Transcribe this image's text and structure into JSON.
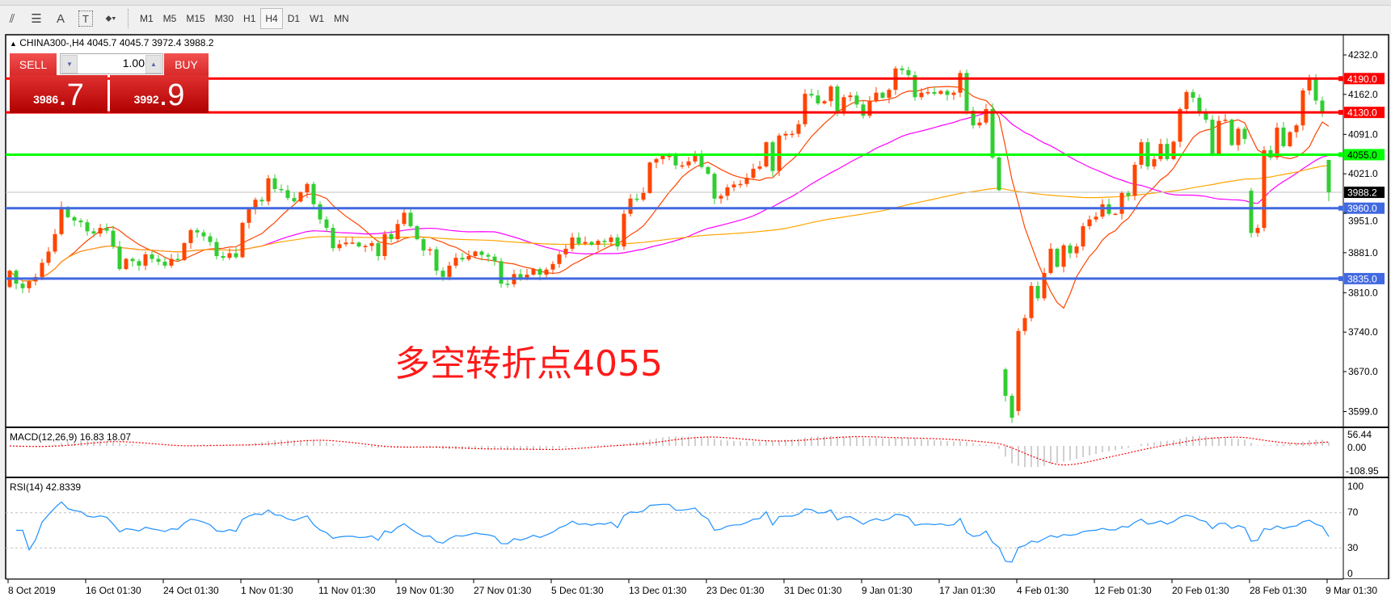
{
  "toolbar": {
    "tools": [
      {
        "icon": "fibonacci-expansion-icon",
        "glyph": "⫽"
      },
      {
        "icon": "fibonacci-fan-icon",
        "glyph": "☰"
      },
      {
        "icon": "text-icon",
        "glyph": "A"
      },
      {
        "icon": "text-label-icon",
        "glyph": "T"
      },
      {
        "icon": "arrows-dropdown-icon",
        "glyph": "⬥▾"
      }
    ],
    "timeframes": [
      "M1",
      "M5",
      "M15",
      "M30",
      "H1",
      "H4",
      "D1",
      "W1",
      "MN"
    ],
    "active_timeframe": "H4"
  },
  "header": {
    "arrow": "▲",
    "symbol": "CHINA300-,H4",
    "open": "4045.7",
    "high": "4045.7",
    "low": "3972.4",
    "close": "3988.2"
  },
  "trade_panel": {
    "sell_label": "SELL",
    "buy_label": "BUY",
    "lot": "1.00",
    "sell_price_main": "3986",
    "sell_price_big": ".7",
    "buy_price_main": "3992",
    "buy_price_big": ".9"
  },
  "annotation": "多空转折点4055",
  "price_axis": [
    "4232.0",
    "4162.0",
    "4091.0",
    "4021.0",
    "3951.0",
    "3881.0",
    "3810.0",
    "3740.0",
    "3670.0",
    "3599.0"
  ],
  "levels": [
    {
      "price": 4190.0,
      "label": "4190.0",
      "color": "#ff0000"
    },
    {
      "price": 4130.0,
      "label": "4130.0",
      "color": "#ff0000"
    },
    {
      "price": 4055.0,
      "label": "4055.0",
      "color": "#00ff00"
    },
    {
      "price": 3960.0,
      "label": "3960.0",
      "color": "#4169e1"
    },
    {
      "price": 3835.0,
      "label": "3835.0",
      "color": "#4169e1"
    }
  ],
  "current_price": {
    "price": 3988.2,
    "label": "3988.2"
  },
  "macd": {
    "label": "MACD(12,26,9) 16.83 18.07",
    "axis": [
      "56.44",
      "0.00",
      "-108.95"
    ]
  },
  "rsi": {
    "label": "RSI(14) 42.8339",
    "axis": [
      "100",
      "70",
      "30",
      "0"
    ]
  },
  "dates": [
    "8 Oct 2019",
    "16 Oct 01:30",
    "24 Oct 01:30",
    "1 Nov 01:30",
    "11 Nov 01:30",
    "19 Nov 01:30",
    "27 Nov 01:30",
    "5 Dec 01:30",
    "13 Dec 01:30",
    "23 Dec 01:30",
    "31 Dec 01:30",
    "9 Jan 01:30",
    "17 Jan 01:30",
    "4 Feb 01:30",
    "12 Feb 01:30",
    "20 Feb 01:30",
    "28 Feb 01:30",
    "9 Mar 01:30"
  ],
  "colors": {
    "bull": "#ff4500",
    "bear": "#32cd32",
    "ma_fast": "#ff4500",
    "ma_mid": "#ff00ff",
    "ma_slow": "#ffa500",
    "rsi": "#1e90ff",
    "macd_signal": "#ff0000",
    "macd_hist": "#c0c0c0"
  },
  "chart_data": {
    "type": "candlestick",
    "symbol": "CHINA300-",
    "timeframe": "H4",
    "ylim": [
      3599,
      4232
    ],
    "first_open": 3820,
    "gap_opens": {
      "154": 3674,
      "156": 3600,
      "192": 3991
    },
    "closes": [
      3849,
      3826,
      3818,
      3830,
      3838,
      3863,
      3883,
      3914,
      3962,
      3944,
      3938,
      3935,
      3919,
      3915,
      3925,
      3920,
      3892,
      3852,
      3870,
      3866,
      3858,
      3878,
      3870,
      3865,
      3858,
      3870,
      3868,
      3898,
      3921,
      3917,
      3910,
      3900,
      3875,
      3872,
      3880,
      3873,
      3934,
      3958,
      3975,
      3972,
      4013,
      3994,
      3992,
      3978,
      3972,
      3988,
      4003,
      3967,
      3940,
      3925,
      3889,
      3896,
      3899,
      3899,
      3892,
      3893,
      3898,
      3875,
      3914,
      3905,
      3932,
      3952,
      3928,
      3905,
      3885,
      3887,
      3849,
      3838,
      3858,
      3872,
      3869,
      3875,
      3883,
      3877,
      3874,
      3866,
      3826,
      3825,
      3843,
      3835,
      3842,
      3852,
      3842,
      3851,
      3861,
      3878,
      3888,
      3908,
      3897,
      3900,
      3895,
      3902,
      3900,
      3908,
      3892,
      3950,
      3977,
      3975,
      3987,
      4041,
      4047,
      4053,
      4053,
      4036,
      4036,
      4043,
      4053,
      4033,
      4021,
      3977,
      3982,
      3997,
      4002,
      4003,
      4014,
      4030,
      4034,
      4077,
      4026,
      4089,
      4092,
      4092,
      4109,
      4163,
      4160,
      4146,
      4150,
      4176,
      4132,
      4157,
      4160,
      4144,
      4124,
      4150,
      4165,
      4156,
      4170,
      4208,
      4205,
      4196,
      4157,
      4165,
      4166,
      4163,
      4168,
      4161,
      4165,
      4200,
      4133,
      4107,
      4112,
      4136,
      4050,
      3992,
      3627,
      3588,
      3742,
      3765,
      3822,
      3800,
      3845,
      3888,
      3856,
      3894,
      3880,
      3892,
      3928,
      3940,
      3945,
      3967,
      3950,
      3950,
      3987,
      3982,
      4037,
      4077,
      4034,
      4047,
      4074,
      4047,
      4078,
      4136,
      4166,
      4156,
      4130,
      4117,
      4057,
      4115,
      4117,
      4072,
      4101,
      4083,
      3916,
      3925,
      4063,
      4050,
      4103,
      4070,
      4095,
      4107,
      4169,
      4192,
      4151,
      4128,
      3988.2
    ]
  }
}
